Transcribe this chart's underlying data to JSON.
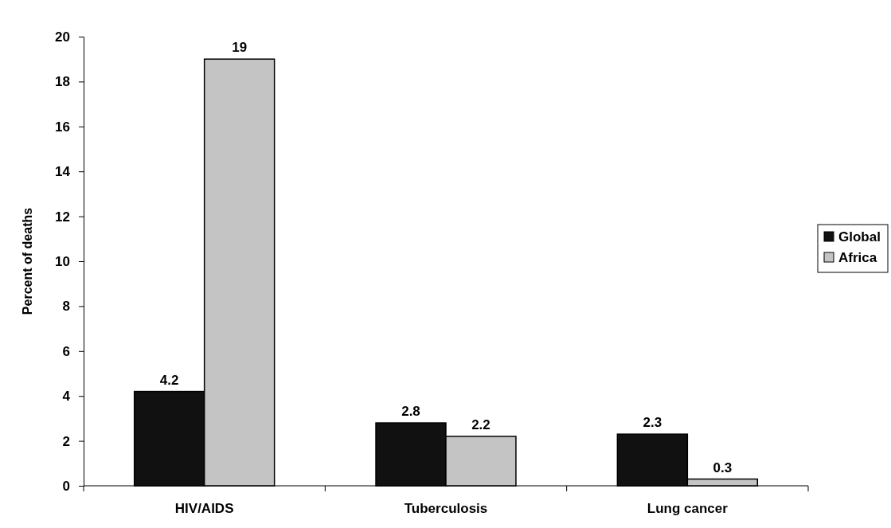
{
  "chart_data": {
    "type": "bar",
    "ylabel": "Percent of deaths",
    "categories": [
      "HIV/AIDS",
      "Tuberculosis",
      "Lung cancer"
    ],
    "series": [
      {
        "name": "Global",
        "color": "#111111",
        "values": [
          4.2,
          2.8,
          2.3
        ]
      },
      {
        "name": "Africa",
        "color": "#c4c4c4",
        "values": [
          19,
          2.2,
          0.3
        ]
      }
    ],
    "ylim": [
      0,
      20
    ],
    "yticks": [
      0,
      2,
      4,
      6,
      8,
      10,
      12,
      14,
      16,
      18,
      20
    ],
    "data_labels": true,
    "legend": "right",
    "grid": false
  }
}
